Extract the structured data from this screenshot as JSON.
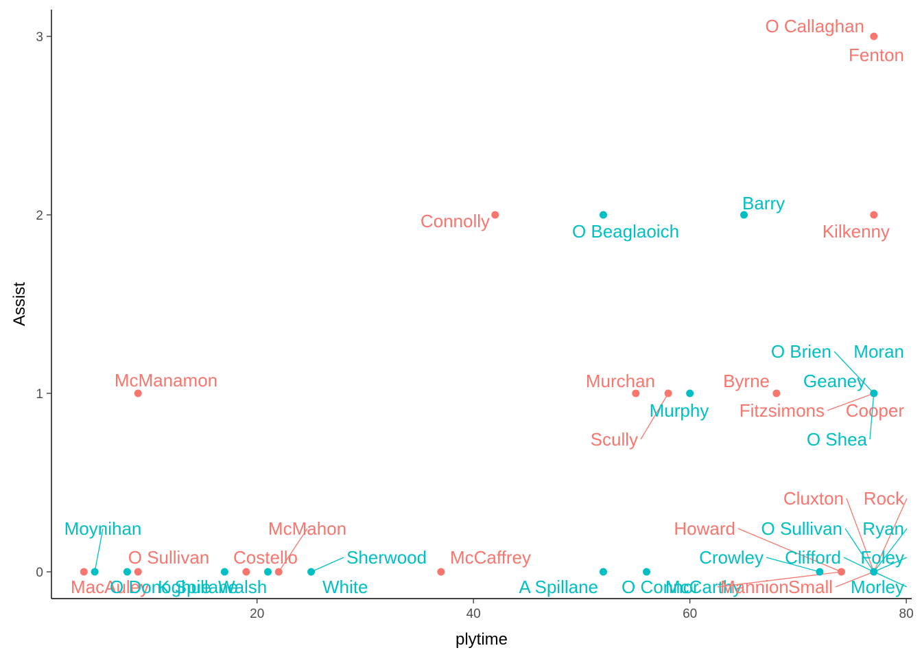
{
  "chart_data": {
    "type": "scatter",
    "title": "",
    "xlabel": "plytime",
    "ylabel": "Assist",
    "xlim": [
      1,
      80.5
    ],
    "ylim": [
      -0.15,
      3.15
    ],
    "x_ticks": [
      20,
      40,
      60,
      80
    ],
    "y_ticks": [
      0,
      1,
      2,
      3
    ],
    "grid": false,
    "legend": "none",
    "colors": {
      "group_a": "#F8766D",
      "group_b": "#00BFC4"
    },
    "points": [
      {
        "label": "O Callaghan",
        "x": 77,
        "y": 3,
        "group": "group_a"
      },
      {
        "label": "Fenton",
        "x": 77,
        "y": 3,
        "group": "group_a"
      },
      {
        "label": "Connolly",
        "x": 42,
        "y": 2,
        "group": "group_a"
      },
      {
        "label": "O Beaglaoich",
        "x": 52,
        "y": 2,
        "group": "group_b"
      },
      {
        "label": "Barry",
        "x": 65,
        "y": 2,
        "group": "group_b"
      },
      {
        "label": "Kilkenny",
        "x": 77,
        "y": 2,
        "group": "group_a"
      },
      {
        "label": "McManamon",
        "x": 9,
        "y": 1,
        "group": "group_a"
      },
      {
        "label": "Murchan",
        "x": 55,
        "y": 1,
        "group": "group_a"
      },
      {
        "label": "Scully",
        "x": 58,
        "y": 1,
        "group": "group_a"
      },
      {
        "label": "Murphy",
        "x": 60,
        "y": 1,
        "group": "group_b"
      },
      {
        "label": "Byrne",
        "x": 68,
        "y": 1,
        "group": "group_a"
      },
      {
        "label": "Fitzsimons",
        "x": 77,
        "y": 1,
        "group": "group_a"
      },
      {
        "label": "O Brien",
        "x": 77,
        "y": 1,
        "group": "group_b"
      },
      {
        "label": "Moran",
        "x": 77,
        "y": 1,
        "group": "group_b"
      },
      {
        "label": "Geaney",
        "x": 77,
        "y": 1,
        "group": "group_b"
      },
      {
        "label": "Cooper",
        "x": 77,
        "y": 1,
        "group": "group_a"
      },
      {
        "label": "O Shea",
        "x": 77,
        "y": 1,
        "group": "group_b"
      },
      {
        "label": "MacAuley",
        "x": 4,
        "y": 0,
        "group": "group_a"
      },
      {
        "label": "Moynihan",
        "x": 5,
        "y": 0,
        "group": "group_b"
      },
      {
        "label": "O Donoghue",
        "x": 8,
        "y": 0,
        "group": "group_b"
      },
      {
        "label": "O Sullivan",
        "x": 9,
        "y": 0,
        "group": "group_a"
      },
      {
        "label": "K Spillane",
        "x": 17,
        "y": 0,
        "group": "group_b"
      },
      {
        "label": "Costello",
        "x": 19,
        "y": 0,
        "group": "group_a"
      },
      {
        "label": "Walsh",
        "x": 21,
        "y": 0,
        "group": "group_b"
      },
      {
        "label": "McMahon",
        "x": 22,
        "y": 0,
        "group": "group_a"
      },
      {
        "label": "Sherwood",
        "x": 25,
        "y": 0,
        "group": "group_b"
      },
      {
        "label": "White",
        "x": 25,
        "y": 0,
        "group": "group_b"
      },
      {
        "label": "McCaffrey",
        "x": 37,
        "y": 0,
        "group": "group_a"
      },
      {
        "label": "A Spillane",
        "x": 52,
        "y": 0,
        "group": "group_b"
      },
      {
        "label": "O Connor",
        "x": 56,
        "y": 0,
        "group": "group_b"
      },
      {
        "label": "McCarthy",
        "x": 72,
        "y": 0,
        "group": "group_b"
      },
      {
        "label": "Crowley",
        "x": 72,
        "y": 0,
        "group": "group_b"
      },
      {
        "label": "Mannion",
        "x": 74,
        "y": 0,
        "group": "group_a"
      },
      {
        "label": "Howard",
        "x": 74,
        "y": 0,
        "group": "group_a"
      },
      {
        "label": "Small",
        "x": 77,
        "y": 0,
        "group": "group_a"
      },
      {
        "label": "Cluxton",
        "x": 77,
        "y": 0,
        "group": "group_a"
      },
      {
        "label": "Rock",
        "x": 77,
        "y": 0,
        "group": "group_a"
      },
      {
        "label": "O Sullivan",
        "x": 77,
        "y": 0,
        "group": "group_b"
      },
      {
        "label": "Ryan",
        "x": 77,
        "y": 0,
        "group": "group_b"
      },
      {
        "label": "Clifford",
        "x": 77,
        "y": 0,
        "group": "group_b"
      },
      {
        "label": "Foley",
        "x": 77,
        "y": 0,
        "group": "group_b"
      },
      {
        "label": "Morley",
        "x": 77,
        "y": 0,
        "group": "group_b"
      }
    ]
  }
}
